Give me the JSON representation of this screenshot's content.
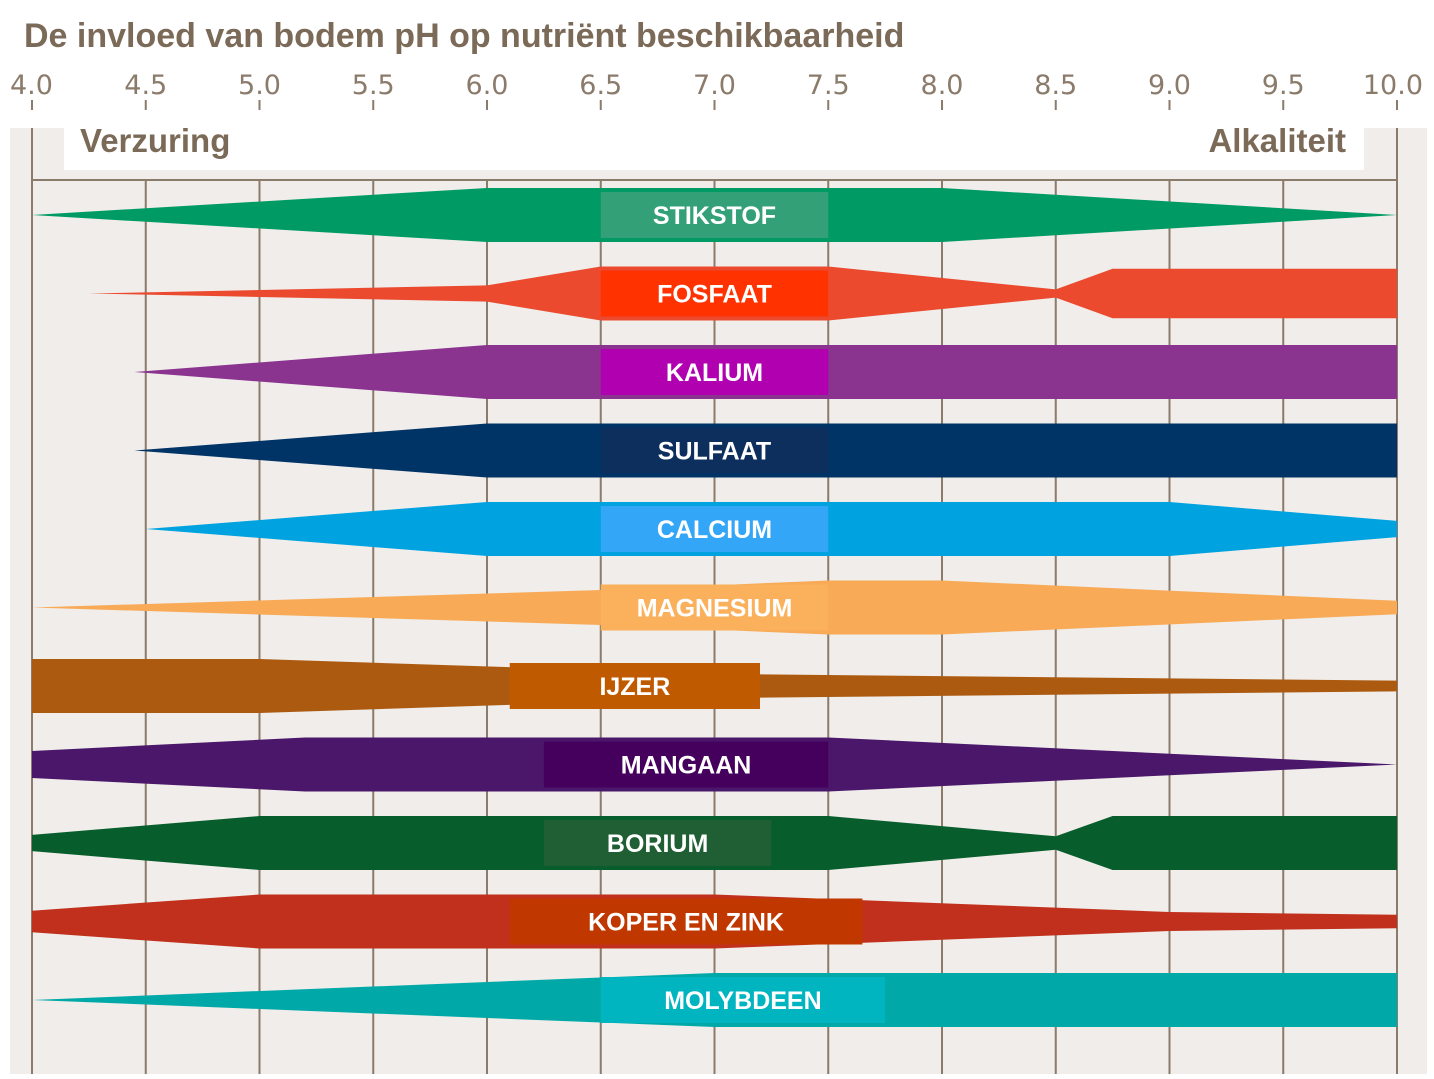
{
  "chart_data": {
    "type": "area",
    "title": "De invloed van bodem pH op nutriënt beschikbaarheid",
    "xlabel": "",
    "ylabel": "",
    "xlim": [
      4.0,
      10.0
    ],
    "x_ticks": [
      "4.0",
      "4.5",
      "5.0",
      "5.5",
      "6.0",
      "6.5",
      "7.0",
      "7.5",
      "8.0",
      "8.5",
      "9.0",
      "9.5",
      "10.0"
    ],
    "left_label": "Verzuring",
    "right_label": "Alkaliteit",
    "grid": true,
    "value_note": "relative availability (0 = none, 1 = maximum band width)",
    "series": [
      {
        "name": "STIKSTOF",
        "color": "#009b64",
        "label_color": "#34a078",
        "label_range": [
          6.5,
          7.5
        ],
        "points": [
          [
            4.0,
            0.0
          ],
          [
            6.0,
            1.0
          ],
          [
            8.0,
            1.0
          ],
          [
            10.0,
            0.0
          ]
        ]
      },
      {
        "name": "FOSFAAT",
        "color": "#eb4a2f",
        "label_color": "#ff3200",
        "label_range": [
          6.5,
          7.5
        ],
        "points": [
          [
            4.25,
            0.0
          ],
          [
            6.0,
            0.3
          ],
          [
            6.5,
            1.0
          ],
          [
            7.5,
            1.0
          ],
          [
            8.5,
            0.15
          ],
          [
            8.75,
            0.92
          ],
          [
            10.0,
            0.92
          ]
        ]
      },
      {
        "name": "KALIUM",
        "color": "#8a3490",
        "label_color": "#b000b0",
        "label_range": [
          6.5,
          7.5
        ],
        "points": [
          [
            4.45,
            0.0
          ],
          [
            6.0,
            1.0
          ],
          [
            10.0,
            1.0
          ]
        ]
      },
      {
        "name": "SULFAAT",
        "color": "#003366",
        "label_color": "#0d2f5e",
        "label_range": [
          6.5,
          7.5
        ],
        "points": [
          [
            4.45,
            0.0
          ],
          [
            6.0,
            1.0
          ],
          [
            10.0,
            1.0
          ]
        ]
      },
      {
        "name": "CALCIUM",
        "color": "#00a2e0",
        "label_color": "#33a6f7",
        "label_range": [
          6.5,
          7.5
        ],
        "points": [
          [
            4.5,
            0.0
          ],
          [
            6.0,
            1.0
          ],
          [
            9.0,
            1.0
          ],
          [
            10.0,
            0.3
          ]
        ]
      },
      {
        "name": "MAGNESIUM",
        "color": "#f8aa56",
        "label_color": "#fbb05c",
        "label_range": [
          6.5,
          7.5
        ],
        "points": [
          [
            4.0,
            0.0
          ],
          [
            6.5,
            0.65
          ],
          [
            7.5,
            1.0
          ],
          [
            8.0,
            1.0
          ],
          [
            10.0,
            0.25
          ]
        ]
      },
      {
        "name": "IJZER",
        "color": "#ac5a10",
        "label_color": "#c05a00",
        "label_range": [
          6.1,
          7.2
        ],
        "points": [
          [
            4.0,
            1.0
          ],
          [
            5.0,
            1.0
          ],
          [
            7.0,
            0.45
          ],
          [
            10.0,
            0.2
          ]
        ]
      },
      {
        "name": "MANGAAN",
        "color": "#4a176a",
        "label_color": "#44005c",
        "label_range": [
          6.25,
          7.5
        ],
        "points": [
          [
            4.0,
            0.5
          ],
          [
            5.2,
            1.0
          ],
          [
            7.5,
            1.0
          ],
          [
            10.0,
            0.0
          ]
        ]
      },
      {
        "name": "BORIUM",
        "color": "#075e2c",
        "label_color": "#205e34",
        "label_range": [
          6.25,
          7.25
        ],
        "points": [
          [
            4.0,
            0.3
          ],
          [
            5.0,
            1.0
          ],
          [
            7.5,
            1.0
          ],
          [
            8.5,
            0.25
          ],
          [
            8.75,
            1.0
          ],
          [
            10.0,
            1.0
          ]
        ]
      },
      {
        "name": "KOPER EN ZINK",
        "color": "#c0301c",
        "label_color": "#c03800",
        "label_range": [
          6.1,
          7.65
        ],
        "points": [
          [
            4.0,
            0.4
          ],
          [
            5.0,
            1.0
          ],
          [
            7.0,
            1.0
          ],
          [
            9.0,
            0.35
          ],
          [
            10.0,
            0.25
          ]
        ]
      },
      {
        "name": "MOLYBDEEN",
        "color": "#00a9a8",
        "label_color": "#00b5c0",
        "label_range": [
          6.5,
          7.75
        ],
        "points": [
          [
            4.0,
            0.0
          ],
          [
            7.0,
            1.0
          ],
          [
            10.0,
            1.0
          ]
        ]
      }
    ]
  }
}
